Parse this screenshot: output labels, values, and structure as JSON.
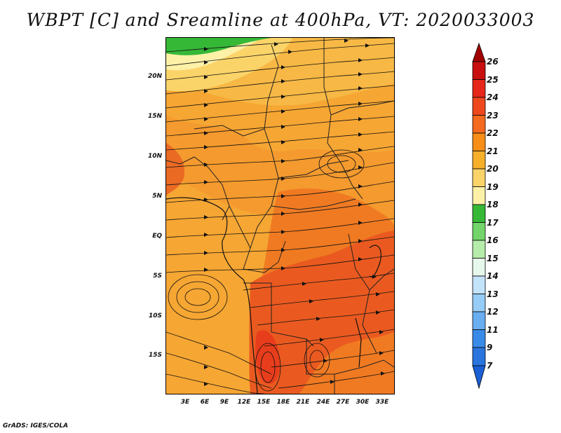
{
  "title": "WBPT [C] and Sreamline at 400hPa, VT: 2020033003",
  "credit": "GrADS: IGES/COLA",
  "lat_labels": [
    "20N",
    "15N",
    "10N",
    "5N",
    "EQ",
    "5S",
    "10S",
    "15S"
  ],
  "lon_labels": [
    "3E",
    "6E",
    "9E",
    "12E",
    "15E",
    "18E",
    "21E",
    "24E",
    "27E",
    "30E",
    "33E"
  ],
  "colorbar": {
    "labels": [
      "26",
      "25",
      "24",
      "23",
      "22",
      "21",
      "20",
      "19",
      "18",
      "17",
      "16",
      "15",
      "14",
      "13",
      "12",
      "11",
      "9",
      "7"
    ],
    "colors": [
      "#a00000",
      "#c80e0e",
      "#e6261a",
      "#f0481e",
      "#f46a1e",
      "#f68e18",
      "#f7ae28",
      "#fbd469",
      "#fdf1a8",
      "#36b837",
      "#72d46a",
      "#b6ecaa",
      "#e6f8ec",
      "#c3e3fb",
      "#96ccf6",
      "#6aaef2",
      "#3a8ae8",
      "#1a5fd4"
    ]
  },
  "map_colors": {
    "orange_base": "#f6a633",
    "light_orange": "#f7b845",
    "yellow": "#fbd469",
    "pale_yellow": "#fdf1a8",
    "green": "#36b837",
    "deep_orange": "#f07a22",
    "red_orange": "#ea5a20",
    "red": "#e6261a"
  }
}
